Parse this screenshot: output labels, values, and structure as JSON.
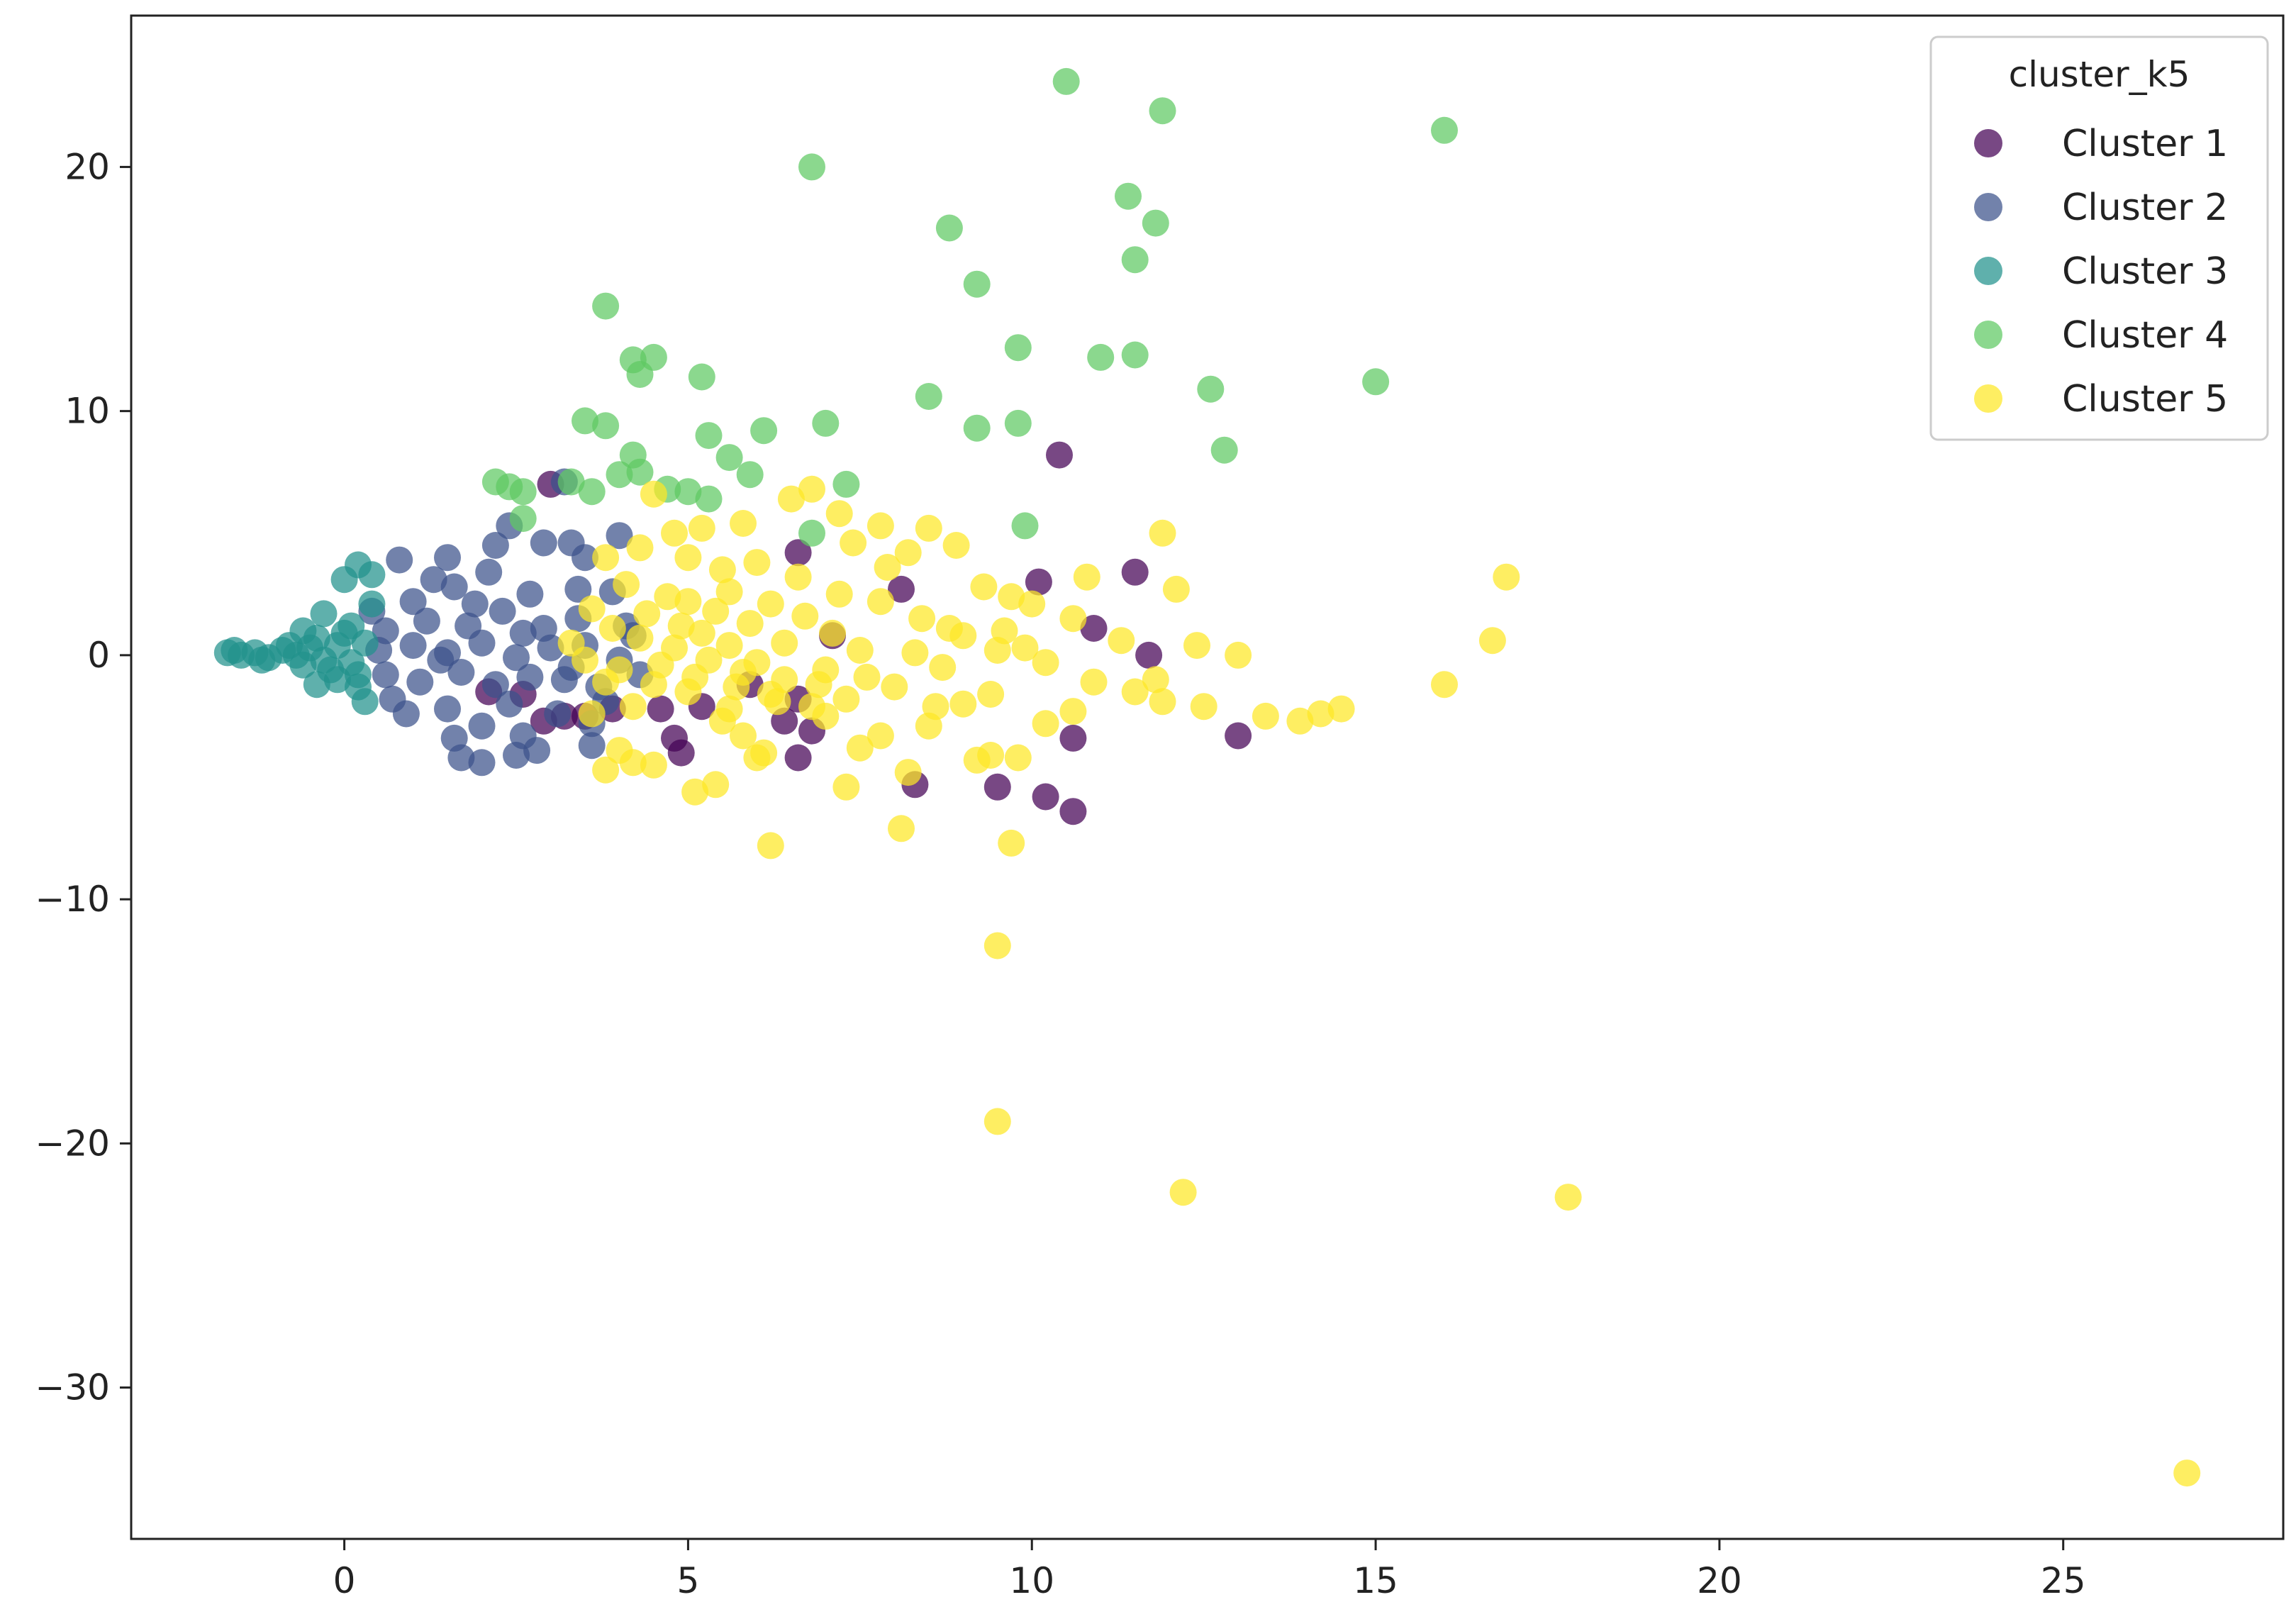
{
  "chart_data": {
    "type": "scatter",
    "title": "",
    "xlabel": "",
    "ylabel": "",
    "xlim": [
      -3.1,
      28.2
    ],
    "ylim": [
      -36.2,
      26.2
    ],
    "x_ticks": [
      0,
      5,
      10,
      15,
      20,
      25
    ],
    "y_ticks": [
      20,
      10,
      0,
      -10,
      -20,
      -30
    ],
    "x_tick_labels": [
      "0",
      "5",
      "10",
      "15",
      "20",
      "25"
    ],
    "y_tick_labels": [
      "20",
      "10",
      "0",
      "−10",
      "−20",
      "−30"
    ],
    "grid": false,
    "legend": {
      "title": "cluster_k5",
      "placement": "top-right"
    },
    "series": [
      {
        "name": "Cluster 1",
        "color": "#440154",
        "points": [
          [
            10.4,
            8.2
          ],
          [
            11.5,
            3.4
          ],
          [
            10.1,
            3.0
          ],
          [
            8.1,
            2.7
          ],
          [
            10.9,
            1.1
          ],
          [
            11.7,
            0.0
          ],
          [
            6.6,
            4.2
          ],
          [
            6.6,
            -1.8
          ],
          [
            6.4,
            -2.7
          ],
          [
            5.2,
            -2.1
          ],
          [
            4.9,
            -4.0
          ],
          [
            4.8,
            -3.4
          ],
          [
            3.9,
            -2.2
          ],
          [
            3.5,
            -2.5
          ],
          [
            3.2,
            -2.5
          ],
          [
            2.9,
            -2.7
          ],
          [
            2.6,
            -1.6
          ],
          [
            6.8,
            -3.1
          ],
          [
            6.6,
            -4.2
          ],
          [
            8.3,
            -5.3
          ],
          [
            9.5,
            -5.4
          ],
          [
            10.2,
            -5.8
          ],
          [
            10.6,
            -6.4
          ],
          [
            10.6,
            -3.4
          ],
          [
            13.0,
            -3.3
          ],
          [
            3.0,
            7.0
          ],
          [
            4.6,
            -2.2
          ],
          [
            5.9,
            -1.2
          ],
          [
            7.1,
            0.8
          ],
          [
            2.1,
            -1.5
          ]
        ]
      },
      {
        "name": "Cluster 2",
        "color": "#3b528b",
        "points": [
          [
            0.8,
            3.9
          ],
          [
            1.5,
            4.0
          ],
          [
            2.2,
            4.5
          ],
          [
            2.4,
            5.3
          ],
          [
            2.9,
            4.6
          ],
          [
            3.2,
            7.1
          ],
          [
            3.3,
            4.6
          ],
          [
            3.5,
            4.0
          ],
          [
            4.0,
            4.9
          ],
          [
            1.0,
            2.2
          ],
          [
            1.6,
            2.8
          ],
          [
            2.1,
            3.4
          ],
          [
            2.7,
            2.5
          ],
          [
            3.4,
            2.7
          ],
          [
            3.9,
            2.6
          ],
          [
            4.1,
            1.2
          ],
          [
            0.6,
            1.0
          ],
          [
            1.2,
            1.4
          ],
          [
            1.8,
            1.2
          ],
          [
            2.3,
            1.8
          ],
          [
            2.9,
            1.1
          ],
          [
            3.4,
            1.5
          ],
          [
            0.5,
            0.2
          ],
          [
            1.0,
            0.4
          ],
          [
            1.5,
            0.1
          ],
          [
            2.0,
            0.5
          ],
          [
            2.5,
            -0.1
          ],
          [
            3.0,
            0.3
          ],
          [
            3.5,
            0.4
          ],
          [
            4.0,
            -0.2
          ],
          [
            4.2,
            0.8
          ],
          [
            0.6,
            -0.8
          ],
          [
            1.1,
            -1.1
          ],
          [
            1.7,
            -0.7
          ],
          [
            2.2,
            -1.2
          ],
          [
            2.7,
            -0.9
          ],
          [
            3.2,
            -1.0
          ],
          [
            3.7,
            -1.3
          ],
          [
            0.9,
            -2.4
          ],
          [
            1.5,
            -2.2
          ],
          [
            2.0,
            -2.9
          ],
          [
            2.6,
            -3.3
          ],
          [
            3.1,
            -2.4
          ],
          [
            3.6,
            -2.8
          ],
          [
            1.6,
            -3.4
          ],
          [
            1.7,
            -4.2
          ],
          [
            2.0,
            -4.4
          ],
          [
            2.5,
            -4.1
          ],
          [
            2.8,
            -3.9
          ],
          [
            3.6,
            -3.7
          ],
          [
            0.4,
            1.8
          ],
          [
            0.7,
            -1.8
          ],
          [
            1.3,
            3.1
          ],
          [
            2.4,
            -2.0
          ],
          [
            3.8,
            -1.9
          ],
          [
            4.3,
            -0.8
          ],
          [
            1.9,
            2.1
          ],
          [
            2.6,
            0.9
          ],
          [
            3.3,
            -0.5
          ],
          [
            1.4,
            -0.2
          ]
        ]
      },
      {
        "name": "Cluster 3",
        "color": "#21918c",
        "points": [
          [
            -1.7,
            0.1
          ],
          [
            -1.5,
            0.0
          ],
          [
            -1.3,
            0.1
          ],
          [
            -1.1,
            -0.1
          ],
          [
            -0.9,
            0.2
          ],
          [
            -0.7,
            0.0
          ],
          [
            -0.5,
            0.3
          ],
          [
            -0.3,
            -0.2
          ],
          [
            -0.1,
            0.4
          ],
          [
            0.1,
            -0.3
          ],
          [
            0.3,
            0.5
          ],
          [
            -1.6,
            0.2
          ],
          [
            -1.2,
            -0.2
          ],
          [
            -0.8,
            0.4
          ],
          [
            -0.6,
            -0.4
          ],
          [
            -0.4,
            0.7
          ],
          [
            -0.2,
            -0.6
          ],
          [
            0.0,
            0.9
          ],
          [
            0.2,
            -0.8
          ],
          [
            0.0,
            3.1
          ],
          [
            0.2,
            3.7
          ],
          [
            0.4,
            3.3
          ],
          [
            0.3,
            -1.9
          ],
          [
            -0.3,
            1.7
          ],
          [
            -0.4,
            -1.2
          ],
          [
            0.1,
            1.2
          ],
          [
            0.2,
            -1.3
          ],
          [
            -0.6,
            1.0
          ],
          [
            -0.1,
            -1.0
          ],
          [
            0.4,
            2.1
          ]
        ]
      },
      {
        "name": "Cluster 4",
        "color": "#5ec962",
        "points": [
          [
            10.5,
            23.5
          ],
          [
            11.9,
            22.3
          ],
          [
            16.0,
            21.5
          ],
          [
            6.8,
            20.0
          ],
          [
            11.4,
            18.8
          ],
          [
            11.8,
            17.7
          ],
          [
            8.8,
            17.5
          ],
          [
            11.5,
            16.2
          ],
          [
            9.2,
            15.2
          ],
          [
            3.8,
            14.3
          ],
          [
            9.8,
            12.6
          ],
          [
            11.0,
            12.2
          ],
          [
            11.5,
            12.3
          ],
          [
            4.2,
            12.1
          ],
          [
            4.5,
            12.2
          ],
          [
            4.3,
            11.5
          ],
          [
            5.2,
            11.4
          ],
          [
            8.5,
            10.6
          ],
          [
            12.6,
            10.9
          ],
          [
            15.0,
            11.2
          ],
          [
            3.5,
            9.6
          ],
          [
            3.8,
            9.4
          ],
          [
            5.3,
            9.0
          ],
          [
            6.1,
            9.2
          ],
          [
            7.0,
            9.5
          ],
          [
            9.2,
            9.3
          ],
          [
            9.8,
            9.5
          ],
          [
            12.8,
            8.4
          ],
          [
            4.2,
            8.2
          ],
          [
            5.6,
            8.1
          ],
          [
            4.0,
            7.4
          ],
          [
            4.3,
            7.5
          ],
          [
            3.3,
            7.1
          ],
          [
            5.9,
            7.4
          ],
          [
            2.2,
            7.1
          ],
          [
            2.4,
            6.9
          ],
          [
            2.6,
            6.7
          ],
          [
            4.7,
            6.8
          ],
          [
            5.0,
            6.7
          ],
          [
            5.3,
            6.4
          ],
          [
            7.3,
            7.0
          ],
          [
            3.6,
            6.7
          ],
          [
            6.8,
            5.0
          ],
          [
            9.9,
            5.3
          ],
          [
            2.6,
            5.6
          ]
        ]
      },
      {
        "name": "Cluster 5",
        "color": "#fde725",
        "points": [
          [
            26.8,
            -33.5
          ],
          [
            17.8,
            -22.2
          ],
          [
            12.2,
            -22.0
          ],
          [
            9.5,
            -19.1
          ],
          [
            9.5,
            -11.9
          ],
          [
            9.7,
            -7.7
          ],
          [
            6.2,
            -7.8
          ],
          [
            8.1,
            -7.1
          ],
          [
            7.3,
            -5.4
          ],
          [
            5.1,
            -5.6
          ],
          [
            5.4,
            -5.3
          ],
          [
            16.9,
            3.2
          ],
          [
            16.7,
            0.6
          ],
          [
            16.0,
            -1.2
          ],
          [
            14.5,
            -2.2
          ],
          [
            14.2,
            -2.4
          ],
          [
            13.9,
            -2.7
          ],
          [
            13.4,
            -2.5
          ],
          [
            12.5,
            -2.1
          ],
          [
            11.9,
            -1.9
          ],
          [
            11.5,
            -1.5
          ],
          [
            11.8,
            -1.0
          ],
          [
            12.4,
            0.4
          ],
          [
            13.0,
            0.0
          ],
          [
            11.9,
            5.0
          ],
          [
            12.1,
            2.7
          ],
          [
            10.8,
            3.2
          ],
          [
            10.6,
            1.5
          ],
          [
            9.9,
            0.3
          ],
          [
            9.6,
            1.0
          ],
          [
            9.4,
            -4.1
          ],
          [
            9.2,
            -4.3
          ],
          [
            9.8,
            -4.2
          ],
          [
            10.2,
            -2.8
          ],
          [
            10.6,
            -2.3
          ],
          [
            7.8,
            -3.3
          ],
          [
            8.2,
            -4.8
          ],
          [
            7.5,
            -3.8
          ],
          [
            7.0,
            -2.5
          ],
          [
            6.0,
            -4.2
          ],
          [
            5.8,
            -3.3
          ],
          [
            4.5,
            -4.5
          ],
          [
            4.2,
            -4.4
          ],
          [
            3.8,
            -4.7
          ],
          [
            4.0,
            -3.9
          ],
          [
            3.6,
            -2.4
          ],
          [
            6.8,
            6.8
          ],
          [
            6.5,
            6.4
          ],
          [
            7.2,
            5.8
          ],
          [
            8.5,
            5.2
          ],
          [
            8.9,
            4.5
          ],
          [
            7.8,
            5.3
          ],
          [
            8.2,
            4.2
          ],
          [
            4.5,
            6.6
          ],
          [
            5.2,
            5.2
          ],
          [
            5.8,
            5.4
          ],
          [
            4.8,
            5.0
          ],
          [
            5.0,
            4.0
          ],
          [
            5.5,
            3.5
          ],
          [
            6.0,
            3.8
          ],
          [
            4.3,
            4.4
          ],
          [
            3.8,
            4.0
          ],
          [
            6.6,
            3.2
          ],
          [
            7.2,
            2.5
          ],
          [
            7.8,
            2.2
          ],
          [
            8.4,
            1.5
          ],
          [
            9.0,
            0.8
          ],
          [
            9.5,
            0.2
          ],
          [
            8.7,
            -0.5
          ],
          [
            8.0,
            -1.3
          ],
          [
            7.3,
            -1.8
          ],
          [
            6.8,
            -2.1
          ],
          [
            6.2,
            -1.6
          ],
          [
            5.6,
            -2.2
          ],
          [
            5.0,
            -1.5
          ],
          [
            4.5,
            -1.2
          ],
          [
            4.0,
            -0.6
          ],
          [
            3.5,
            -0.2
          ],
          [
            3.3,
            0.5
          ],
          [
            3.9,
            1.1
          ],
          [
            4.4,
            1.7
          ],
          [
            5.0,
            2.2
          ],
          [
            5.6,
            2.6
          ],
          [
            6.2,
            2.1
          ],
          [
            6.7,
            1.6
          ],
          [
            7.1,
            0.9
          ],
          [
            7.5,
            0.2
          ],
          [
            7.0,
            -0.6
          ],
          [
            6.4,
            -1.0
          ],
          [
            5.8,
            -0.7
          ],
          [
            5.3,
            -0.2
          ],
          [
            4.8,
            0.3
          ],
          [
            4.3,
            0.7
          ],
          [
            3.8,
            -1.1
          ],
          [
            5.2,
            0.9
          ],
          [
            5.6,
            0.4
          ],
          [
            6.0,
            -0.3
          ],
          [
            6.4,
            0.5
          ],
          [
            5.9,
            1.3
          ],
          [
            5.4,
            1.8
          ],
          [
            4.9,
            1.2
          ],
          [
            4.6,
            -0.4
          ],
          [
            5.1,
            -0.9
          ],
          [
            5.7,
            -1.3
          ],
          [
            6.3,
            -1.9
          ],
          [
            4.7,
            2.4
          ],
          [
            5.5,
            -2.7
          ],
          [
            6.9,
            -1.2
          ],
          [
            7.6,
            -0.9
          ],
          [
            8.3,
            0.1
          ],
          [
            8.8,
            1.1
          ],
          [
            10.2,
            -0.3
          ],
          [
            10.9,
            -1.1
          ],
          [
            9.4,
            -1.6
          ],
          [
            11.3,
            0.6
          ],
          [
            8.6,
            -2.1
          ],
          [
            7.9,
            3.6
          ],
          [
            9.3,
            2.8
          ],
          [
            10.0,
            2.1
          ],
          [
            6.1,
            -4.0
          ],
          [
            8.5,
            -2.9
          ],
          [
            9.0,
            -2.0
          ],
          [
            4.1,
            2.9
          ],
          [
            3.6,
            1.9
          ],
          [
            4.2,
            -2.1
          ],
          [
            7.4,
            4.6
          ],
          [
            9.7,
            2.4
          ]
        ]
      }
    ]
  }
}
